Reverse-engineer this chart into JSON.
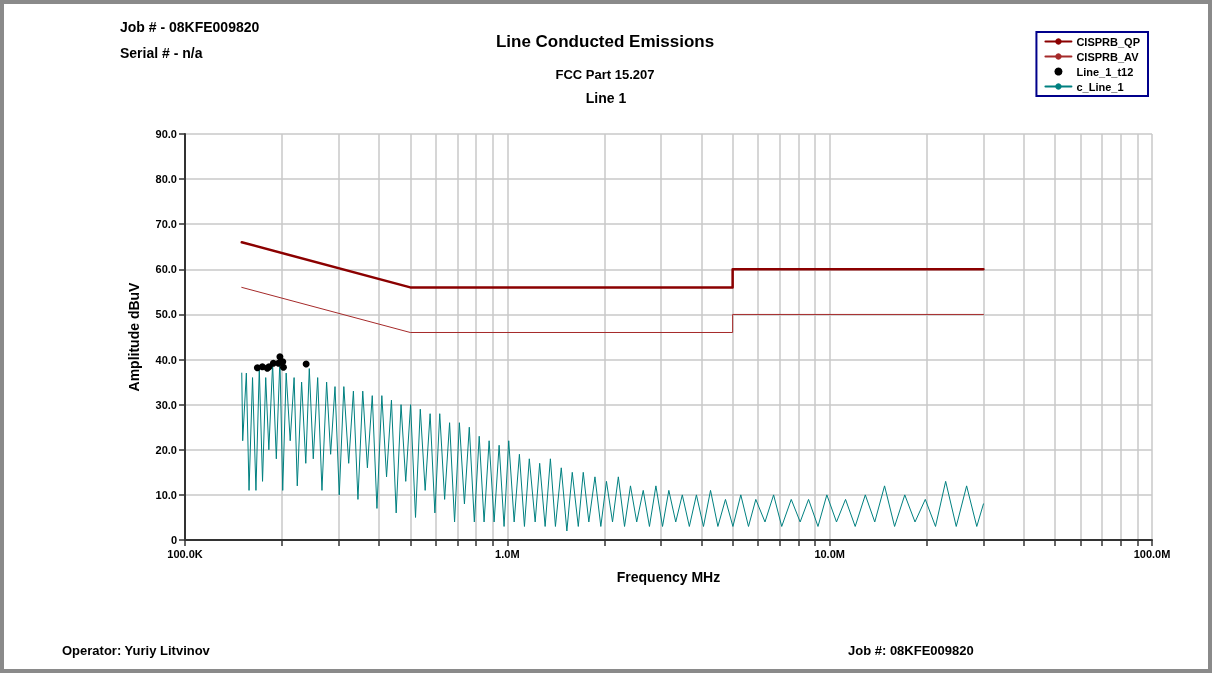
{
  "chart_data": {
    "type": "line",
    "title": "Line Conducted Emissions",
    "subtitle": "FCC Part 15.207",
    "annotations": [
      "Job # - 08KFE009820",
      "Serial # - n/a",
      "Line 1",
      "Operator: Yuriy Litvinov",
      "Job #: 08KFE009820"
    ],
    "xlabel": "Frequency MHz",
    "ylabel": "Amplitude dBuV",
    "log": "x",
    "grid": true,
    "legend": "top right",
    "marker": "none",
    "line_style": "solid",
    "xlim": [
      100000,
      100000000
    ],
    "xticks": [
      {
        "value": 100000,
        "label": "100.0K"
      },
      {
        "value": 200000,
        "label": null
      },
      {
        "value": 300000,
        "label": null
      },
      {
        "value": 400000,
        "label": null
      },
      {
        "value": 500000,
        "label": null
      },
      {
        "value": 600000,
        "label": null
      },
      {
        "value": 700000,
        "label": null
      },
      {
        "value": 800000,
        "label": null
      },
      {
        "value": 900000,
        "label": null
      },
      {
        "value": 1000000,
        "label": "1.0M"
      },
      {
        "value": 2000000,
        "label": null
      },
      {
        "value": 3000000,
        "label": null
      },
      {
        "value": 4000000,
        "label": null
      },
      {
        "value": 5000000,
        "label": null
      },
      {
        "value": 6000000,
        "label": null
      },
      {
        "value": 7000000,
        "label": null
      },
      {
        "value": 8000000,
        "label": null
      },
      {
        "value": 9000000,
        "label": null
      },
      {
        "value": 10000000,
        "label": "10.0M"
      },
      {
        "value": 20000000,
        "label": null
      },
      {
        "value": 30000000,
        "label": null
      },
      {
        "value": 40000000,
        "label": null
      },
      {
        "value": 50000000,
        "label": null
      },
      {
        "value": 60000000,
        "label": null
      },
      {
        "value": 70000000,
        "label": null
      },
      {
        "value": 80000000,
        "label": null
      },
      {
        "value": 90000000,
        "label": null
      },
      {
        "value": 100000000,
        "label": "100.0M"
      }
    ],
    "ylim": [
      0,
      90
    ],
    "yticks": [
      0,
      {
        "value": 10,
        "label": "10.0"
      },
      {
        "value": 20,
        "label": "20.0"
      },
      {
        "value": 30,
        "label": "30.0"
      },
      {
        "value": 40,
        "label": "40.0"
      },
      {
        "value": 50,
        "label": "50.0"
      },
      {
        "value": 60,
        "label": "60.0"
      },
      {
        "value": 70,
        "label": "70.0"
      },
      {
        "value": 80,
        "label": "80.0"
      },
      {
        "value": 90,
        "label": "90.0"
      }
    ],
    "series": [
      {
        "name": "CISPRB_QP",
        "color": "#8b0000",
        "x": [
          150000,
          500000,
          5000000,
          5000000,
          30000000
        ],
        "values": [
          66,
          56,
          56,
          60,
          60
        ]
      },
      {
        "name": "CISPRB_AV",
        "color": "#a52a2a",
        "x": [
          150000,
          500000,
          5000000,
          5000000,
          30000000
        ],
        "values": [
          56,
          46,
          46,
          50,
          50
        ]
      },
      {
        "name": "Line_1_t12",
        "type": "scatter",
        "marker": "circle",
        "color": "#000000",
        "x": [
          167700,
          173800,
          180000,
          182300,
          188000,
          195000,
          197000,
          201000,
          202000,
          237600
        ],
        "values": [
          38.2,
          38.4,
          38.1,
          38.4,
          39.2,
          39.2,
          40.6,
          39.5,
          38.3,
          39.0
        ]
      },
      {
        "name": "c_Line_1",
        "color": "#008080",
        "x": [
          150000,
          151000,
          155000,
          158000,
          162000,
          166000,
          170000,
          174000,
          178000,
          182000,
          187000,
          192000,
          197000,
          201000,
          206000,
          212000,
          218000,
          223000,
          230000,
          237000,
          243000,
          250000,
          258000,
          266000,
          275000,
          283000,
          292000,
          301000,
          311000,
          322000,
          333000,
          344000,
          356000,
          368000,
          381000,
          394000,
          408000,
          422000,
          437000,
          452000,
          468000,
          484000,
          501000,
          519000,
          537000,
          556000,
          576000,
          596000,
          617000,
          639000,
          662000,
          686000,
          710000,
          736000,
          762000,
          790000,
          818000,
          847000,
          878000,
          910000,
          943000,
          977000,
          1010000,
          1050000,
          1090000,
          1130000,
          1170000,
          1220000,
          1260000,
          1310000,
          1360000,
          1410000,
          1470000,
          1530000,
          1590000,
          1660000,
          1720000,
          1790000,
          1870000,
          1950000,
          2030000,
          2120000,
          2210000,
          2310000,
          2410000,
          2520000,
          2640000,
          2760000,
          2890000,
          3030000,
          3170000,
          3330000,
          3490000,
          3670000,
          3860000,
          4060000,
          4270000,
          4500000,
          4750000,
          5010000,
          5300000,
          5600000,
          5900000,
          6300000,
          6700000,
          7100000,
          7600000,
          8100000,
          8600000,
          9200000,
          9800000,
          10500000,
          11200000,
          12000000,
          12900000,
          13800000,
          14800000,
          15900000,
          17100000,
          18400000,
          19800000,
          21300000,
          22900000,
          24700000,
          26600000,
          28600000,
          30000000
        ],
        "values": [
          37,
          22,
          37,
          11,
          36,
          11,
          38,
          13,
          36,
          20,
          39,
          18,
          40,
          11,
          37,
          22,
          36,
          12,
          35,
          17,
          38,
          18,
          36,
          11,
          35,
          19,
          34,
          10,
          34,
          17,
          33,
          9,
          33,
          16,
          32,
          7,
          32,
          14,
          31,
          6,
          30,
          13,
          30,
          5,
          29,
          11,
          28,
          6,
          28,
          9,
          26,
          4,
          26,
          8,
          25,
          4,
          23,
          4,
          22,
          4,
          21,
          3,
          22,
          4,
          19,
          3,
          18,
          4,
          17,
          3,
          18,
          3,
          16,
          2,
          15,
          3,
          15,
          4,
          14,
          3,
          13,
          4,
          14,
          3,
          12,
          4,
          11,
          3,
          12,
          3,
          11,
          4,
          10,
          3,
          10,
          3,
          11,
          3,
          9,
          3,
          10,
          3,
          9,
          4,
          10,
          3,
          9,
          4,
          9,
          3,
          10,
          4,
          9,
          3,
          10,
          4,
          12,
          3,
          10,
          4,
          9,
          3,
          13,
          3,
          12,
          3,
          8
        ]
      }
    ]
  }
}
